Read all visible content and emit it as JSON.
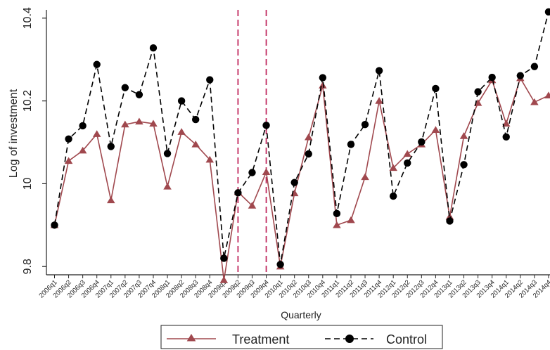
{
  "chart_data": {
    "type": "line",
    "title": "",
    "xlabel": "Quarterly",
    "ylabel": "Log of investment",
    "ylim": [
      9.78,
      10.42
    ],
    "yticks": [
      9.8,
      10,
      10.2,
      10.4
    ],
    "ytick_labels": [
      "9.8",
      "10",
      "10.2",
      "10.4"
    ],
    "grid": false,
    "legend_position": "bottom-center",
    "categories": [
      "2006q1",
      "2006q2",
      "2006q3",
      "2006q4",
      "2007q1",
      "2007q2",
      "2007q3",
      "2007q4",
      "2008q1",
      "2008q2",
      "2008q3",
      "2008q4",
      "2009q1",
      "2009q2",
      "2009q3",
      "2009q4",
      "2010q1",
      "2010q2",
      "2010q3",
      "2010q4",
      "2011q1",
      "2011q2",
      "2011q3",
      "2011q4",
      "2012q1",
      "2012q2",
      "2012q3",
      "2012q4",
      "2013q1",
      "2013q2",
      "2013q3",
      "2013q4",
      "2014q1",
      "2014q2",
      "2014q3",
      "2014q4"
    ],
    "vertical_reference_lines": [
      "2009q2",
      "2009q4"
    ],
    "series": [
      {
        "name": "Treatment",
        "color": "#a0484e",
        "line_style": "solid",
        "marker": "triangle",
        "values": [
          9.9,
          10.055,
          10.08,
          10.12,
          9.96,
          10.143,
          10.15,
          10.145,
          9.993,
          10.125,
          10.095,
          10.058,
          9.767,
          9.98,
          9.947,
          10.028,
          9.8,
          9.977,
          10.112,
          10.237,
          9.9,
          9.912,
          10.016,
          10.2,
          10.038,
          10.072,
          10.095,
          10.13,
          9.92,
          10.115,
          10.195,
          10.25,
          10.145,
          10.255,
          10.197,
          10.213
        ]
      },
      {
        "name": "Control",
        "color": "#000000",
        "line_style": "dashed",
        "marker": "circle",
        "values": [
          9.9,
          10.108,
          10.14,
          10.288,
          10.09,
          10.232,
          10.215,
          10.328,
          10.073,
          10.2,
          10.155,
          10.251,
          9.82,
          9.978,
          10.027,
          10.141,
          9.805,
          10.003,
          10.072,
          10.256,
          9.928,
          10.095,
          10.143,
          10.273,
          9.97,
          10.05,
          10.101,
          10.23,
          9.91,
          10.046,
          10.222,
          10.257,
          10.113,
          10.261,
          10.283,
          10.415
        ]
      }
    ]
  }
}
